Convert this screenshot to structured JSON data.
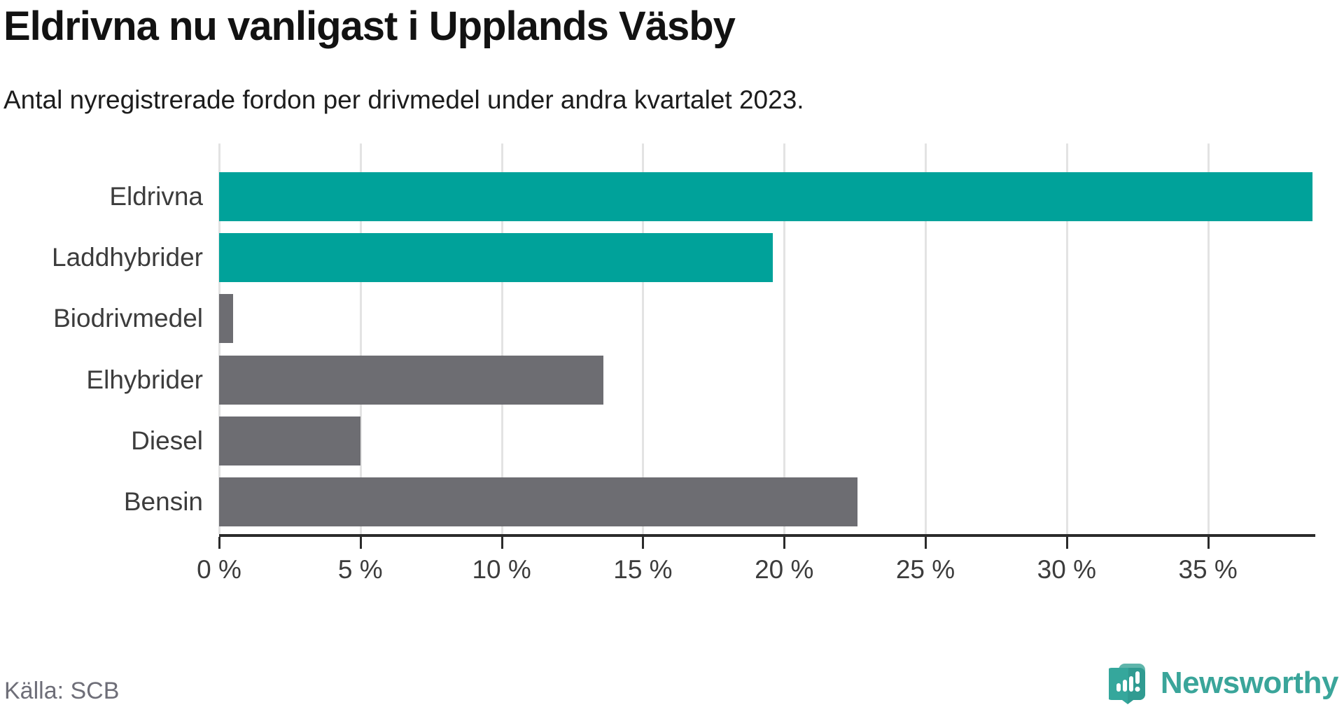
{
  "header": {
    "title": "Eldrivna nu vanligast i Upplands Väsby",
    "subtitle": "Antal nyregistrerade fordon per drivmedel under andra kvartalet 2023."
  },
  "chart_data": {
    "type": "bar",
    "orientation": "horizontal",
    "title": "Eldrivna nu vanligast i Upplands Väsby",
    "subtitle": "Antal nyregistrerade fordon per drivmedel under andra kvartalet 2023.",
    "categories": [
      "Eldrivna",
      "Laddhybrider",
      "Biodrivmedel",
      "Elhybrider",
      "Diesel",
      "Bensin"
    ],
    "values": [
      38.7,
      19.6,
      0.5,
      13.6,
      5.0,
      22.6
    ],
    "unit": "%",
    "bar_colors": [
      "#00a29a",
      "#00a29a",
      "#6d6d72",
      "#6d6d72",
      "#6d6d72",
      "#6d6d72"
    ],
    "highlight_color": "#00a29a",
    "default_color": "#6d6d72",
    "xlim": [
      0,
      38.7
    ],
    "x_ticks": [
      0,
      5,
      10,
      15,
      20,
      25,
      30,
      35
    ],
    "tick_label_suffix": " %",
    "grid": true,
    "legend": false,
    "gridline_color": "#e3e3e3",
    "axis_color": "#2b2b2b"
  },
  "footer": {
    "source": "Källa: SCB",
    "brand": "Newsworthy"
  },
  "icons": {
    "brand_logo": "newsworthy-speech-bubble-chart-icon"
  },
  "colors": {
    "brand_teal": "#3aa59a",
    "icon_teal": "#35a79c",
    "icon_teal_light": "#5fb5ab",
    "icon_teal_dark": "#2c9188"
  }
}
